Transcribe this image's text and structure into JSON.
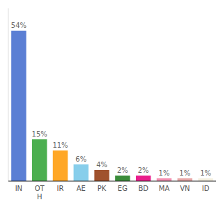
{
  "chart_data": {
    "type": "bar",
    "categories": [
      "IN",
      "OT\nH",
      "IR",
      "AE",
      "PK",
      "EG",
      "BD",
      "MA",
      "VN",
      "ID"
    ],
    "values": [
      54,
      15,
      11,
      6,
      4,
      2,
      2,
      1,
      1,
      1
    ],
    "value_labels": [
      "54%",
      "15%",
      "11%",
      "6%",
      "4%",
      "2%",
      "2%",
      "1%",
      "1%",
      "1%"
    ],
    "colors": [
      "#5b7fd4",
      "#4caf50",
      "#ffa726",
      "#87ceeb",
      "#a0522d",
      "#3a8c3a",
      "#e91e8c",
      "#f48fb1",
      "#e8a8a8",
      "#f5f0e0"
    ],
    "ylim": [
      0,
      62
    ],
    "data_labels": true,
    "tick_labels": "x",
    "grid": false
  }
}
